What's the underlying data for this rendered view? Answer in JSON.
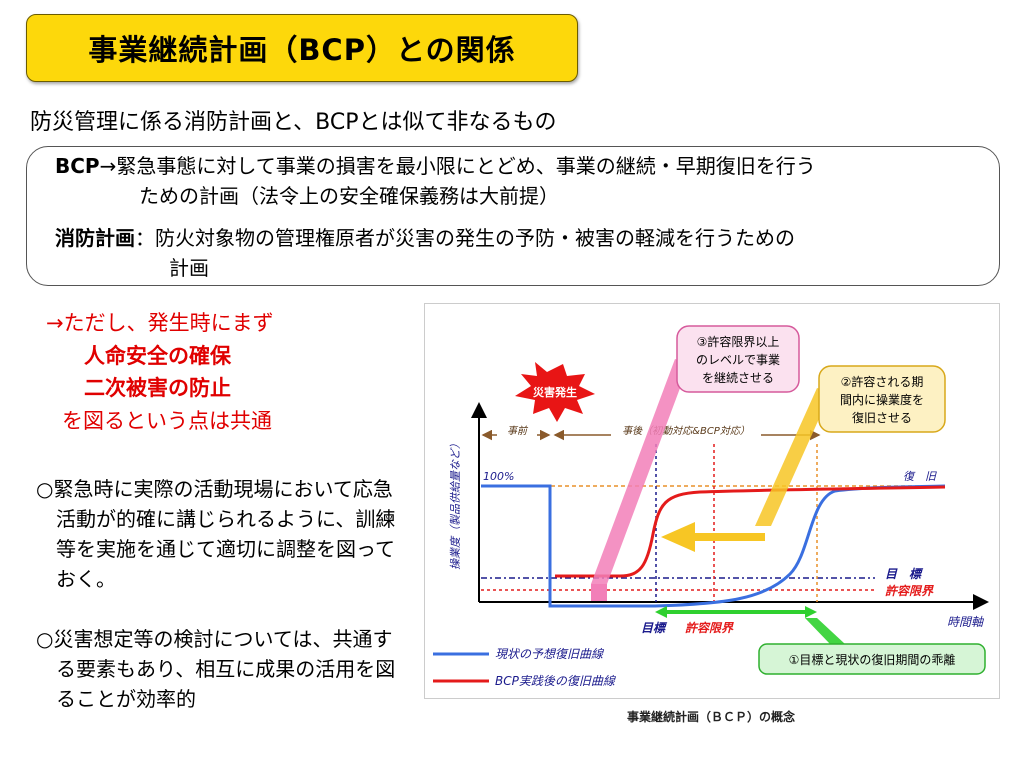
{
  "title": "事業継続計画（BCP）との関係",
  "subtitle": "防災管理に係る消防計画と、BCPとは似て非なるもの",
  "definitions": {
    "bcp_term": "BCP",
    "bcp_arrow": "→",
    "bcp_line1": "緊急事態に対して事業の損害を最小限にとどめ、事業の継続・早期復旧を行う",
    "bcp_line2": "ための計画（法令上の安全確保義務は大前提）",
    "fire_term": "消防計画",
    "fire_colon": "：",
    "fire_line1": "防火対象物の管理権原者が災害の発生の予防・被害の軽減を行うための",
    "fire_line2": "計画"
  },
  "highlight": {
    "line1": "→ただし、発生時にまず",
    "line2": "人命安全の確保",
    "line3": "二次被害の防止",
    "line4": "を図るという点は共通"
  },
  "bullets": [
    "○緊急時に実際の活動現場において応急活動が的確に講じられるように、訓練等を実施を通じて適切に調整を図っておく。",
    "○災害想定等の検討については、共通する要素もあり、相互に成果の活用を図ることが効率的"
  ],
  "figure": {
    "caption": "事業継続計画（ＢＣＰ）の概念",
    "disaster_label": "災害発生",
    "y_axis_label": "操業度（製品供給量など）",
    "x_axis_label": "時間軸",
    "pct_label": "100%",
    "before_label": "事前",
    "after_label": "事後（初動対応&BCP対応）",
    "recovery_label": "復　旧",
    "target_label": "目　標",
    "tolerance_label": "許容限界",
    "target_time_label": "目標",
    "tolerance_time_label": "許容限界",
    "callout1": "①目標と現状の復旧期間の乖離",
    "callout2_line1": "②許容される期",
    "callout2_line2": "間内に操業度を",
    "callout2_line3": "復旧させる",
    "callout3_line1": "③許容限界以上",
    "callout3_line2": "のレベルで事業",
    "callout3_line3": "を継続させる",
    "legend_current": "現状の予想復旧曲線",
    "legend_bcp": "BCP実践後の復旧曲線",
    "colors": {
      "current_curve": "#3a6fe0",
      "bcp_curve": "#e41b1b",
      "pink": "#f27fb8",
      "yellow": "#f7c624",
      "green": "#2fd02f",
      "dark_blue": "#1a1a8c"
    }
  }
}
